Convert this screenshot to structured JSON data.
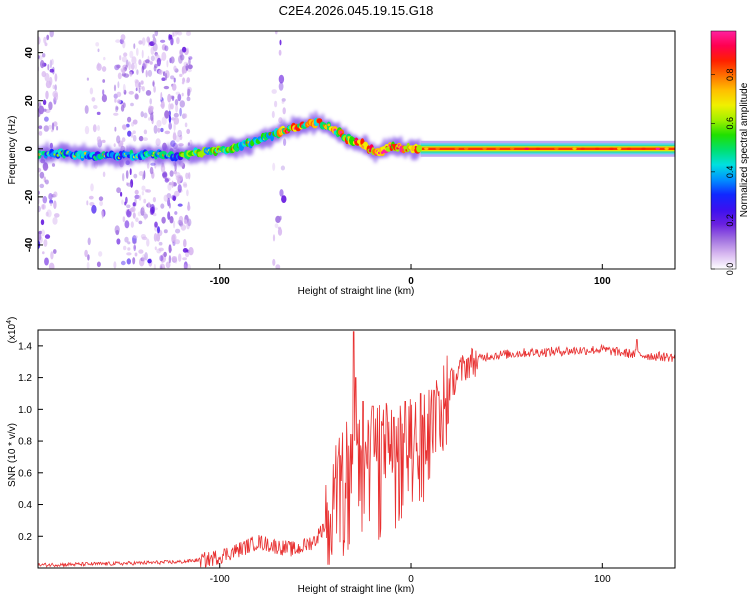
{
  "figure": {
    "title": "C2E4.2026.045.19.15.G18"
  },
  "chart_data": [
    {
      "type": "heatmap",
      "title": "C2E4.2026.045.19.15.G18",
      "xlabel": "Height of straight line (km)",
      "ylabel": "Frequency (Hz)",
      "xlim": [
        -195,
        138
      ],
      "ylim": [
        -50,
        49
      ],
      "x_ticks": [
        -100,
        0,
        100
      ],
      "x_tick_labels": [
        "-100",
        "0",
        "100"
      ],
      "y_ticks": [
        -40,
        -20,
        0,
        20,
        40
      ],
      "y_tick_labels": [
        "-40",
        "-20",
        "0",
        "20",
        "40"
      ],
      "frequency_track": [
        {
          "x": -195,
          "y": -2
        },
        {
          "x": -180,
          "y": -2
        },
        {
          "x": -165,
          "y": -3
        },
        {
          "x": -150,
          "y": -3
        },
        {
          "x": -135,
          "y": -2
        },
        {
          "x": -125,
          "y": -3
        },
        {
          "x": -115,
          "y": -2
        },
        {
          "x": -105,
          "y": -1
        },
        {
          "x": -95,
          "y": 0
        },
        {
          "x": -85,
          "y": 2
        },
        {
          "x": -75,
          "y": 5
        },
        {
          "x": -65,
          "y": 8
        },
        {
          "x": -55,
          "y": 10
        },
        {
          "x": -48,
          "y": 11
        },
        {
          "x": -40,
          "y": 8
        },
        {
          "x": -33,
          "y": 4
        },
        {
          "x": -25,
          "y": 2
        },
        {
          "x": -18,
          "y": -2
        },
        {
          "x": -10,
          "y": 1
        },
        {
          "x": 0,
          "y": 0
        },
        {
          "x": 5,
          "y": 0
        },
        {
          "x": 50,
          "y": 0
        },
        {
          "x": 100,
          "y": 0
        },
        {
          "x": 138,
          "y": 0
        }
      ],
      "colorbar": {
        "label": "Normalized spectral amplitude",
        "range": [
          0,
          0.98
        ],
        "ticks": [
          0.0,
          0.2,
          0.4,
          0.6,
          0.8
        ],
        "tick_labels": [
          "0.0",
          "0.2",
          "0.4",
          "0.6",
          "0.8"
        ],
        "colors": [
          "#ffffff",
          "#d8b8f0",
          "#a070e0",
          "#6a20e0",
          "#3b10f0",
          "#1028ff",
          "#0090ff",
          "#00e0e0",
          "#00e070",
          "#20e000",
          "#a0f000",
          "#f0f000",
          "#ffc000",
          "#ff7000",
          "#ff2000",
          "#ff0050",
          "#ff20a0"
        ]
      }
    },
    {
      "type": "line",
      "xlabel": "Height of straight line (km)",
      "ylabel": "SNR (10 * v/v)",
      "y_scale_label": "(x10",
      "y_scale_exp": "4",
      "y_scale_close": ")",
      "xlim": [
        -195,
        138
      ],
      "ylim": [
        0,
        1.5
      ],
      "x_ticks": [
        -100,
        0,
        100
      ],
      "x_tick_labels": [
        "-100",
        "0",
        "100"
      ],
      "y_ticks": [
        0.2,
        0.4,
        0.6,
        0.8,
        1.0,
        1.2,
        1.4
      ],
      "y_tick_labels": [
        "0.2",
        "0.4",
        "0.6",
        "0.8",
        "1.0",
        "1.2",
        "1.4"
      ],
      "line_color": "#e83030",
      "series": [
        {
          "name": "SNR",
          "points": [
            {
              "x": -195,
              "y": 0.02
            },
            {
              "x": -150,
              "y": 0.03
            },
            {
              "x": -120,
              "y": 0.04
            },
            {
              "x": -105,
              "y": 0.06
            },
            {
              "x": -90,
              "y": 0.12
            },
            {
              "x": -80,
              "y": 0.17
            },
            {
              "x": -70,
              "y": 0.14
            },
            {
              "x": -60,
              "y": 0.12
            },
            {
              "x": -50,
              "y": 0.18
            },
            {
              "x": -44,
              "y": 0.3
            },
            {
              "x": -40,
              "y": 0.5
            },
            {
              "x": -36,
              "y": 0.65
            },
            {
              "x": -32,
              "y": 0.7
            },
            {
              "x": -28,
              "y": 0.68
            },
            {
              "x": -24,
              "y": 0.72
            },
            {
              "x": -20,
              "y": 0.78
            },
            {
              "x": -14,
              "y": 0.82
            },
            {
              "x": -10,
              "y": 0.82
            },
            {
              "x": -5,
              "y": 0.85
            },
            {
              "x": 0,
              "y": 0.82
            },
            {
              "x": 5,
              "y": 0.86
            },
            {
              "x": 10,
              "y": 0.95
            },
            {
              "x": 15,
              "y": 1.05
            },
            {
              "x": 20,
              "y": 1.15
            },
            {
              "x": 25,
              "y": 1.24
            },
            {
              "x": 30,
              "y": 1.3
            },
            {
              "x": 40,
              "y": 1.34
            },
            {
              "x": 60,
              "y": 1.36
            },
            {
              "x": 80,
              "y": 1.37
            },
            {
              "x": 100,
              "y": 1.38
            },
            {
              "x": 110,
              "y": 1.36
            },
            {
              "x": 125,
              "y": 1.34
            },
            {
              "x": 138,
              "y": 1.33
            }
          ],
          "peaks": [
            {
              "x": -30,
              "y": 1.49
            },
            {
              "x": -29,
              "y": 1.2
            },
            {
              "x": -25,
              "y": 1.05
            },
            {
              "x": -20,
              "y": 1.02
            },
            {
              "x": -15,
              "y": 0.9
            },
            {
              "x": -9,
              "y": 0.95
            },
            {
              "x": -3,
              "y": 1.05
            },
            {
              "x": 5,
              "y": 1.1
            },
            {
              "x": 12,
              "y": 1.12
            },
            {
              "x": 118,
              "y": 1.44
            }
          ]
        }
      ]
    }
  ]
}
